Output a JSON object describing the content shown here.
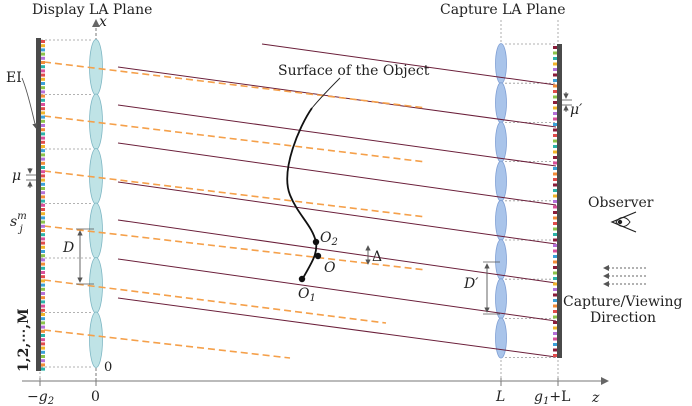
{
  "titles": {
    "display_plane": "Display LA Plane",
    "capture_plane": "Capture LA Plane"
  },
  "axes": {
    "x_label": "x",
    "z_label": "z",
    "origin_label": "0",
    "tick_neg_g2": "−g",
    "tick_neg_g2_sub": "2",
    "tick_zero": "0",
    "tick_L": "L",
    "tick_g1L_g": "g",
    "tick_g1L_sub": "1",
    "tick_g1L_rest": "+L"
  },
  "labels": {
    "surface": "Surface of the Object",
    "ei": "EI",
    "mu": "μ",
    "mu_prime": "μ′",
    "s_base": "s",
    "s_sub": "j",
    "s_sup": "m",
    "D": "D",
    "D_prime": "D′",
    "delta": "Δ",
    "O": "O",
    "O1": "O",
    "O1_sub": "1",
    "O2": "O",
    "O2_sub": "2",
    "observer": "Observer",
    "capture_viewing_line1": "Capture/Viewing",
    "capture_viewing_line2": "Direction",
    "elemental_index": "1,2,⋯,M"
  },
  "colors": {
    "solid_ray": "#6b1f3a",
    "dashed_ray": "#f5a04a",
    "lens_fill": "#bfe3e6",
    "lens_edge": "#7fb7c4",
    "capture_lens_fill": "#a9c4ea",
    "screen": "#4a4a4a"
  }
}
